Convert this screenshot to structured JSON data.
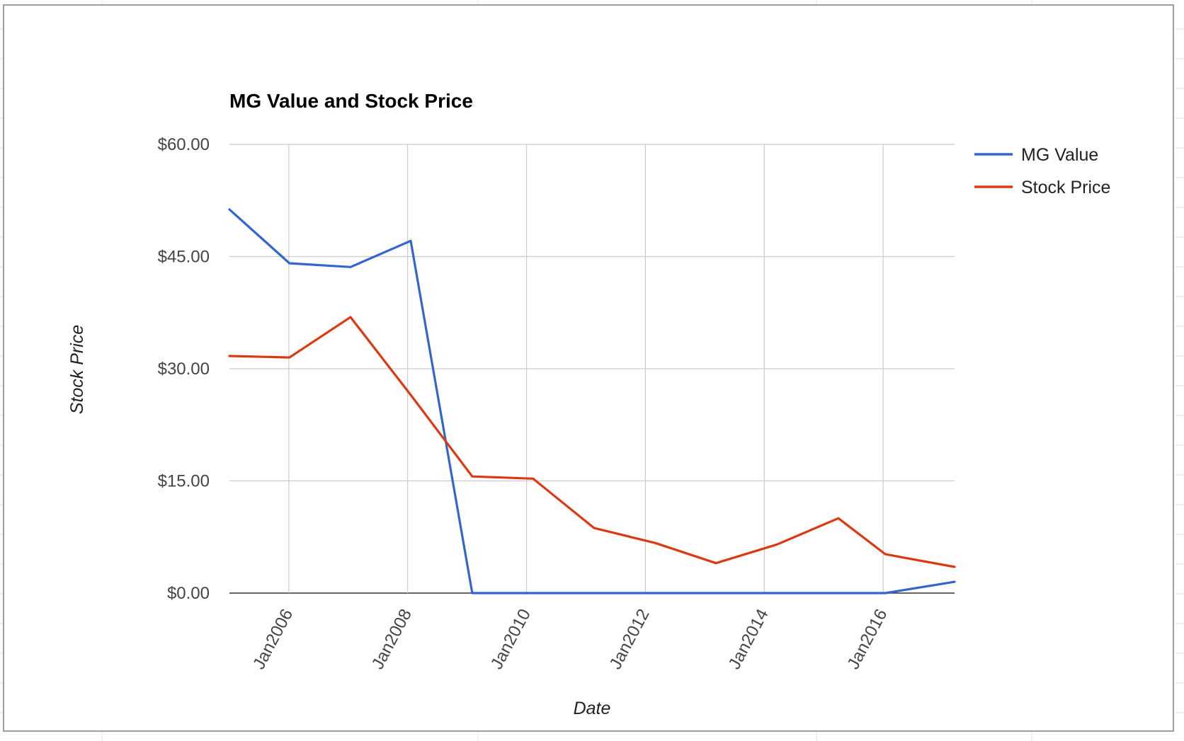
{
  "chart_data": {
    "type": "line",
    "title": "MG Value and Stock Price",
    "xlabel": "Date",
    "ylabel": "Stock Price",
    "ylim": [
      0,
      60
    ],
    "xlim": [
      "2005-01-01",
      "2017-03-15"
    ],
    "y_ticks": [
      "$0.00",
      "$15.00",
      "$30.00",
      "$45.00",
      "$60.00"
    ],
    "y_tick_values": [
      0,
      15,
      30,
      45,
      60
    ],
    "x_ticks": [
      "Jan2006",
      "Jan2008",
      "Jan2010",
      "Jan2012",
      "Jan2014",
      "Jan2016"
    ],
    "x_tick_dates": [
      "2006-01-01",
      "2008-01-01",
      "2010-01-01",
      "2012-01-01",
      "2014-01-01",
      "2016-01-01"
    ],
    "grid": true,
    "legend_position": "right",
    "series": [
      {
        "name": "MG Value",
        "color": "#3366cc",
        "points": [
          {
            "x": "2005-01-01",
            "y": 51.3
          },
          {
            "x": "2006-01-05",
            "y": 44.1
          },
          {
            "x": "2007-01-15",
            "y": 43.6
          },
          {
            "x": "2008-01-20",
            "y": 47.1
          },
          {
            "x": "2009-02-01",
            "y": 0.0
          },
          {
            "x": "2010-02-10",
            "y": 0.0
          },
          {
            "x": "2011-02-20",
            "y": 0.0
          },
          {
            "x": "2012-03-01",
            "y": 0.0
          },
          {
            "x": "2013-03-10",
            "y": 0.0
          },
          {
            "x": "2014-03-20",
            "y": 0.0
          },
          {
            "x": "2015-04-01",
            "y": 0.0
          },
          {
            "x": "2016-01-15",
            "y": 0.0
          },
          {
            "x": "2017-03-15",
            "y": 1.5
          }
        ]
      },
      {
        "name": "Stock Price",
        "color": "#dc3912",
        "points": [
          {
            "x": "2005-01-01",
            "y": 31.7
          },
          {
            "x": "2006-01-05",
            "y": 31.5
          },
          {
            "x": "2007-01-15",
            "y": 36.9
          },
          {
            "x": "2008-01-20",
            "y": 26.5
          },
          {
            "x": "2009-02-01",
            "y": 15.6
          },
          {
            "x": "2010-02-10",
            "y": 15.3
          },
          {
            "x": "2011-02-20",
            "y": 8.7
          },
          {
            "x": "2012-03-01",
            "y": 6.7
          },
          {
            "x": "2013-03-10",
            "y": 4.0
          },
          {
            "x": "2014-03-20",
            "y": 6.5
          },
          {
            "x": "2015-04-01",
            "y": 10.0
          },
          {
            "x": "2016-01-15",
            "y": 5.2
          },
          {
            "x": "2017-03-15",
            "y": 3.5
          }
        ]
      }
    ]
  }
}
